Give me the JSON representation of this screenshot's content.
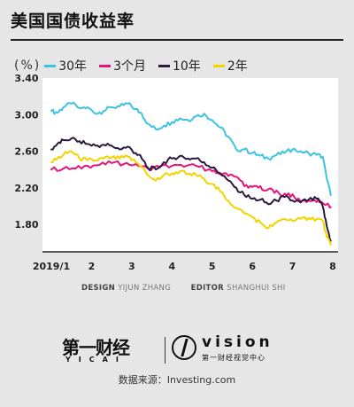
{
  "title": "美国国债收益率",
  "legend": {
    "unit": "(%)",
    "items": [
      {
        "label": "30年",
        "color": "#3cc3e3"
      },
      {
        "label": "3个月",
        "color": "#e5157a"
      },
      {
        "label": "10年",
        "color": "#2a1a3e"
      },
      {
        "label": "2年",
        "color": "#f2d400"
      }
    ]
  },
  "credits": {
    "design_label": "DESIGN",
    "design_name": "YIJUN ZHANG",
    "editor_label": "EDITOR",
    "editor_name": "SHANGHUI SHI"
  },
  "logos": {
    "yicai": "第一财经",
    "yicai_sub": "YICAI",
    "vision": "vision",
    "vision_sub": "第一财经视觉中心"
  },
  "source": "数据来源：Investing.com",
  "chart_data": {
    "type": "line",
    "ylim": [
      1.5,
      3.4
    ],
    "yticks": [
      3.4,
      3.0,
      2.6,
      2.2,
      1.8
    ],
    "yticklabels": [
      "3.40",
      "3.00",
      "2.60",
      "2.20",
      "1.80"
    ],
    "xlim": [
      1,
      8.0
    ],
    "xticks": [
      1,
      2,
      3,
      4,
      5,
      6,
      7,
      8
    ],
    "xticklabels": [
      "2019/1",
      "2",
      "3",
      "4",
      "5",
      "6",
      "7",
      "8"
    ],
    "grid": false,
    "legend_position": "top",
    "series": [
      {
        "name": "30年",
        "color": "#3cc3e3",
        "points": [
          [
            1.0,
            3.04
          ],
          [
            1.15,
            3.02
          ],
          [
            1.3,
            3.08
          ],
          [
            1.5,
            3.12
          ],
          [
            1.7,
            3.07
          ],
          [
            1.9,
            3.08
          ],
          [
            2.1,
            3.01
          ],
          [
            2.3,
            3.04
          ],
          [
            2.5,
            3.08
          ],
          [
            2.7,
            3.09
          ],
          [
            2.9,
            3.12
          ],
          [
            3.1,
            3.06
          ],
          [
            3.25,
            3.01
          ],
          [
            3.4,
            2.9
          ],
          [
            3.6,
            2.84
          ],
          [
            3.8,
            2.88
          ],
          [
            4.0,
            2.92
          ],
          [
            4.2,
            2.96
          ],
          [
            4.4,
            2.94
          ],
          [
            4.6,
            2.98
          ],
          [
            4.8,
            3.01
          ],
          [
            5.0,
            2.94
          ],
          [
            5.2,
            2.86
          ],
          [
            5.4,
            2.76
          ],
          [
            5.6,
            2.62
          ],
          [
            5.8,
            2.62
          ],
          [
            6.0,
            2.58
          ],
          [
            6.2,
            2.55
          ],
          [
            6.4,
            2.52
          ],
          [
            6.6,
            2.56
          ],
          [
            6.8,
            2.58
          ],
          [
            7.0,
            2.62
          ],
          [
            7.2,
            2.6
          ],
          [
            7.4,
            2.58
          ],
          [
            7.6,
            2.56
          ],
          [
            7.75,
            2.54
          ],
          [
            7.85,
            2.3
          ],
          [
            7.95,
            2.12
          ]
        ]
      },
      {
        "name": "3个月",
        "color": "#e5157a",
        "points": [
          [
            1.0,
            2.4
          ],
          [
            1.3,
            2.41
          ],
          [
            1.6,
            2.41
          ],
          [
            1.9,
            2.44
          ],
          [
            2.2,
            2.45
          ],
          [
            2.5,
            2.47
          ],
          [
            2.8,
            2.46
          ],
          [
            3.1,
            2.46
          ],
          [
            3.4,
            2.41
          ],
          [
            3.7,
            2.43
          ],
          [
            4.0,
            2.44
          ],
          [
            4.3,
            2.43
          ],
          [
            4.6,
            2.44
          ],
          [
            4.9,
            2.4
          ],
          [
            5.1,
            2.36
          ],
          [
            5.3,
            2.36
          ],
          [
            5.5,
            2.34
          ],
          [
            5.7,
            2.28
          ],
          [
            5.9,
            2.2
          ],
          [
            6.1,
            2.22
          ],
          [
            6.3,
            2.17
          ],
          [
            6.5,
            2.18
          ],
          [
            6.7,
            2.12
          ],
          [
            6.9,
            2.14
          ],
          [
            7.1,
            2.07
          ],
          [
            7.3,
            2.06
          ],
          [
            7.5,
            2.06
          ],
          [
            7.7,
            2.05
          ],
          [
            7.85,
            2.02
          ],
          [
            7.95,
            1.99
          ]
        ]
      },
      {
        "name": "10年",
        "color": "#2a1a3e",
        "points": [
          [
            1.0,
            2.62
          ],
          [
            1.15,
            2.68
          ],
          [
            1.3,
            2.72
          ],
          [
            1.5,
            2.74
          ],
          [
            1.7,
            2.71
          ],
          [
            1.9,
            2.68
          ],
          [
            2.1,
            2.66
          ],
          [
            2.3,
            2.67
          ],
          [
            2.5,
            2.66
          ],
          [
            2.7,
            2.62
          ],
          [
            2.9,
            2.65
          ],
          [
            3.1,
            2.58
          ],
          [
            3.25,
            2.52
          ],
          [
            3.4,
            2.42
          ],
          [
            3.6,
            2.4
          ],
          [
            3.8,
            2.48
          ],
          [
            4.0,
            2.52
          ],
          [
            4.2,
            2.55
          ],
          [
            4.4,
            2.52
          ],
          [
            4.6,
            2.52
          ],
          [
            4.8,
            2.48
          ],
          [
            5.0,
            2.42
          ],
          [
            5.2,
            2.36
          ],
          [
            5.4,
            2.28
          ],
          [
            5.6,
            2.2
          ],
          [
            5.8,
            2.12
          ],
          [
            6.0,
            2.08
          ],
          [
            6.2,
            2.07
          ],
          [
            6.4,
            2.02
          ],
          [
            6.6,
            2.06
          ],
          [
            6.8,
            2.1
          ],
          [
            7.0,
            2.06
          ],
          [
            7.2,
            2.04
          ],
          [
            7.4,
            2.07
          ],
          [
            7.6,
            2.08
          ],
          [
            7.75,
            2.0
          ],
          [
            7.85,
            1.78
          ],
          [
            7.95,
            1.62
          ]
        ]
      },
      {
        "name": "2年",
        "color": "#f2d400",
        "points": [
          [
            1.0,
            2.48
          ],
          [
            1.15,
            2.52
          ],
          [
            1.3,
            2.56
          ],
          [
            1.5,
            2.6
          ],
          [
            1.7,
            2.52
          ],
          [
            1.9,
            2.5
          ],
          [
            2.1,
            2.5
          ],
          [
            2.3,
            2.52
          ],
          [
            2.5,
            2.53
          ],
          [
            2.7,
            2.52
          ],
          [
            2.9,
            2.54
          ],
          [
            3.1,
            2.48
          ],
          [
            3.25,
            2.43
          ],
          [
            3.4,
            2.34
          ],
          [
            3.6,
            2.28
          ],
          [
            3.8,
            2.34
          ],
          [
            4.0,
            2.36
          ],
          [
            4.2,
            2.38
          ],
          [
            4.4,
            2.35
          ],
          [
            4.6,
            2.34
          ],
          [
            4.8,
            2.3
          ],
          [
            5.0,
            2.24
          ],
          [
            5.2,
            2.16
          ],
          [
            5.4,
            2.06
          ],
          [
            5.6,
            1.98
          ],
          [
            5.8,
            1.92
          ],
          [
            6.0,
            1.88
          ],
          [
            6.2,
            1.82
          ],
          [
            6.4,
            1.76
          ],
          [
            6.6,
            1.82
          ],
          [
            6.8,
            1.86
          ],
          [
            7.0,
            1.84
          ],
          [
            7.2,
            1.86
          ],
          [
            7.4,
            1.87
          ],
          [
            7.6,
            1.86
          ],
          [
            7.75,
            1.84
          ],
          [
            7.85,
            1.66
          ],
          [
            7.95,
            1.58
          ]
        ]
      }
    ]
  }
}
